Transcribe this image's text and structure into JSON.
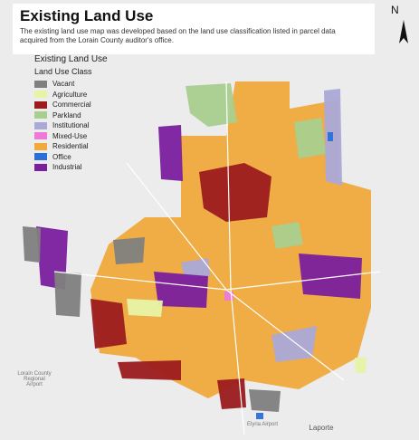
{
  "header": {
    "title": "Existing Land Use",
    "description": "The existing land use map was developed based on the land use classification listed in parcel data acquired from the Lorain County auditor's office."
  },
  "north_label": "N",
  "legend": {
    "title": "Existing Land Use",
    "subtitle": "Land Use Class",
    "classes": [
      {
        "name": "Vacant",
        "color": "#808080"
      },
      {
        "name": "Agriculture",
        "color": "#e6f4a6"
      },
      {
        "name": "Commercial",
        "color": "#9b1b1e"
      },
      {
        "name": "Parkland",
        "color": "#a9cf8e"
      },
      {
        "name": "Institutional",
        "color": "#aaa9d8"
      },
      {
        "name": "Mixed-Use",
        "color": "#ee7ad6"
      },
      {
        "name": "Residential",
        "color": "#f0a93c"
      },
      {
        "name": "Office",
        "color": "#2c6fd8"
      },
      {
        "name": "Industrial",
        "color": "#7a1f9e"
      }
    ]
  },
  "places": [
    "Lorain County Regional Airport",
    "Elyria Airport",
    "Laporte"
  ]
}
